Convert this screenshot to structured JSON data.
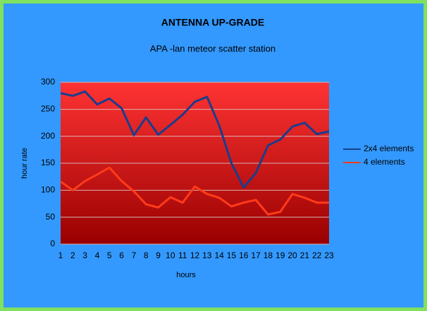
{
  "chart_data": {
    "type": "line",
    "title": "ANTENNA UP-GRADE",
    "subtitle": "APA -lan meteor scatter station",
    "x_label": "hours",
    "y_label": "hour rate",
    "categories": [
      "1",
      "2",
      "3",
      "4",
      "5",
      "6",
      "7",
      "8",
      "9",
      "10",
      "11",
      "12",
      "13",
      "14",
      "15",
      "16",
      "17",
      "18",
      "19",
      "20",
      "21",
      "22",
      "23"
    ],
    "series": [
      {
        "name": "2x4 elements",
        "color": "#1a3d8c",
        "values": [
          280,
          275,
          283,
          259,
          270,
          252,
          202,
          235,
          203,
          221,
          240,
          264,
          273,
          220,
          150,
          105,
          132,
          183,
          194,
          218,
          225,
          204,
          209
        ]
      },
      {
        "name": "4 elements",
        "color": "#ff3b1a",
        "values": [
          116,
          100,
          117,
          129,
          142,
          117,
          98,
          74,
          68,
          87,
          77,
          107,
          93,
          86,
          70,
          77,
          82,
          55,
          60,
          93,
          86,
          77,
          77
        ]
      }
    ],
    "ylim": [
      0,
      300
    ],
    "yticks": [
      0,
      50,
      100,
      150,
      200,
      250,
      300
    ],
    "grid": true,
    "legend": "right"
  }
}
